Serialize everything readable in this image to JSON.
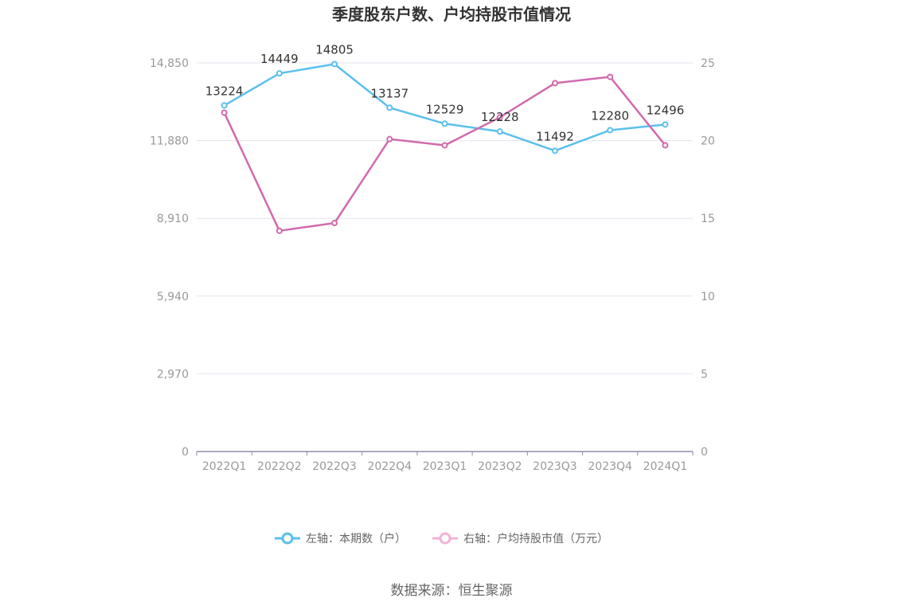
{
  "chart_data": {
    "type": "line",
    "title": "季度股东户数、户均持股市值情况",
    "categories": [
      "2022Q1",
      "2022Q2",
      "2022Q3",
      "2022Q4",
      "2023Q1",
      "2023Q2",
      "2023Q3",
      "2023Q4",
      "2024Q1"
    ],
    "series": [
      {
        "name": "左轴：本期数（户）",
        "axis": "left",
        "color": "#5bc0eb",
        "values": [
          13224,
          14449,
          14805,
          13137,
          12529,
          12228,
          11492,
          12280,
          12496
        ],
        "labels": [
          "13224",
          "14449",
          "14805",
          "13137",
          "12529",
          "12228",
          "11492",
          "12280",
          "12496"
        ]
      },
      {
        "name": "右轴：户均持股市值（万元）",
        "axis": "right",
        "color": "#d16aad",
        "values": [
          21.8,
          14.2,
          14.7,
          20.1,
          19.7,
          21.5,
          23.7,
          24.1,
          19.7
        ]
      }
    ],
    "left_axis": {
      "ylim": [
        0,
        14850
      ],
      "ticks": [
        "0",
        "2,970",
        "5,940",
        "8,910",
        "11,880",
        "14,850"
      ]
    },
    "right_axis": {
      "ylim": [
        0,
        25
      ],
      "ticks": [
        "0",
        "5",
        "10",
        "15",
        "20",
        "25"
      ]
    },
    "grid": true,
    "legend_position": "bottom"
  },
  "source": "数据来源：恒生聚源"
}
